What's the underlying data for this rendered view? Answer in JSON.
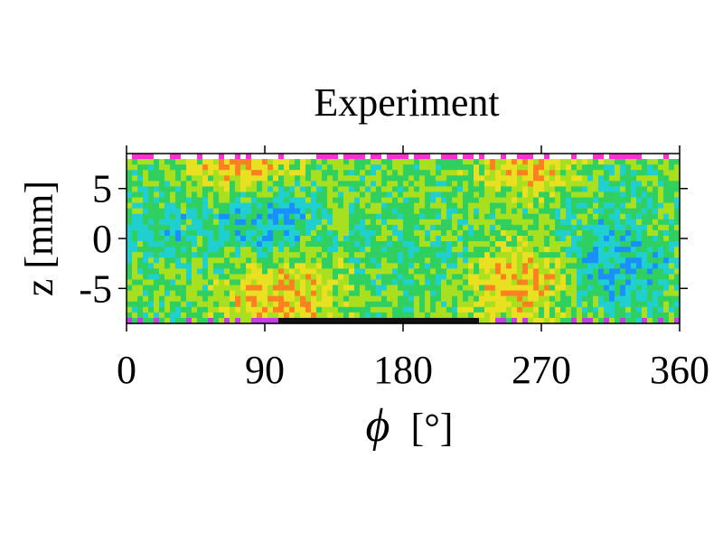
{
  "chart_data": {
    "type": "heatmap",
    "title": "Experiment",
    "xlabel_symbol": "ϕ",
    "xlabel_unit": "[°]",
    "ylabel": "z [mm]",
    "xlim": [
      0,
      360
    ],
    "ylim": [
      -8.5,
      8.5
    ],
    "xticks": [
      0,
      90,
      180,
      270,
      360
    ],
    "yticks": [
      5,
      0,
      -5
    ],
    "grid": false,
    "legend": "none",
    "colormap": [
      "#1020c0",
      "#1a90ff",
      "#20d0d0",
      "#30d060",
      "#a8e020",
      "#e8e020",
      "#ff8020",
      "#ff2020",
      "#ff30c0"
    ],
    "features": [
      {
        "phi": 75,
        "z": 7.5,
        "level": 0.82
      },
      {
        "phi": 265,
        "z": 7.5,
        "level": 0.82
      },
      {
        "phi": 100,
        "z": -6,
        "level": 0.8
      },
      {
        "phi": 255,
        "z": -4.5,
        "level": 0.8
      },
      {
        "phi": 90,
        "z": 2,
        "level": 0.12
      },
      {
        "phi": 320,
        "z": -3,
        "level": 0.1
      },
      {
        "phi": 25,
        "z": 1,
        "level": 0.22
      },
      {
        "phi": 200,
        "z": -2,
        "level": 0.3
      },
      {
        "phi": 300,
        "z": 3,
        "level": 0.25
      }
    ]
  }
}
